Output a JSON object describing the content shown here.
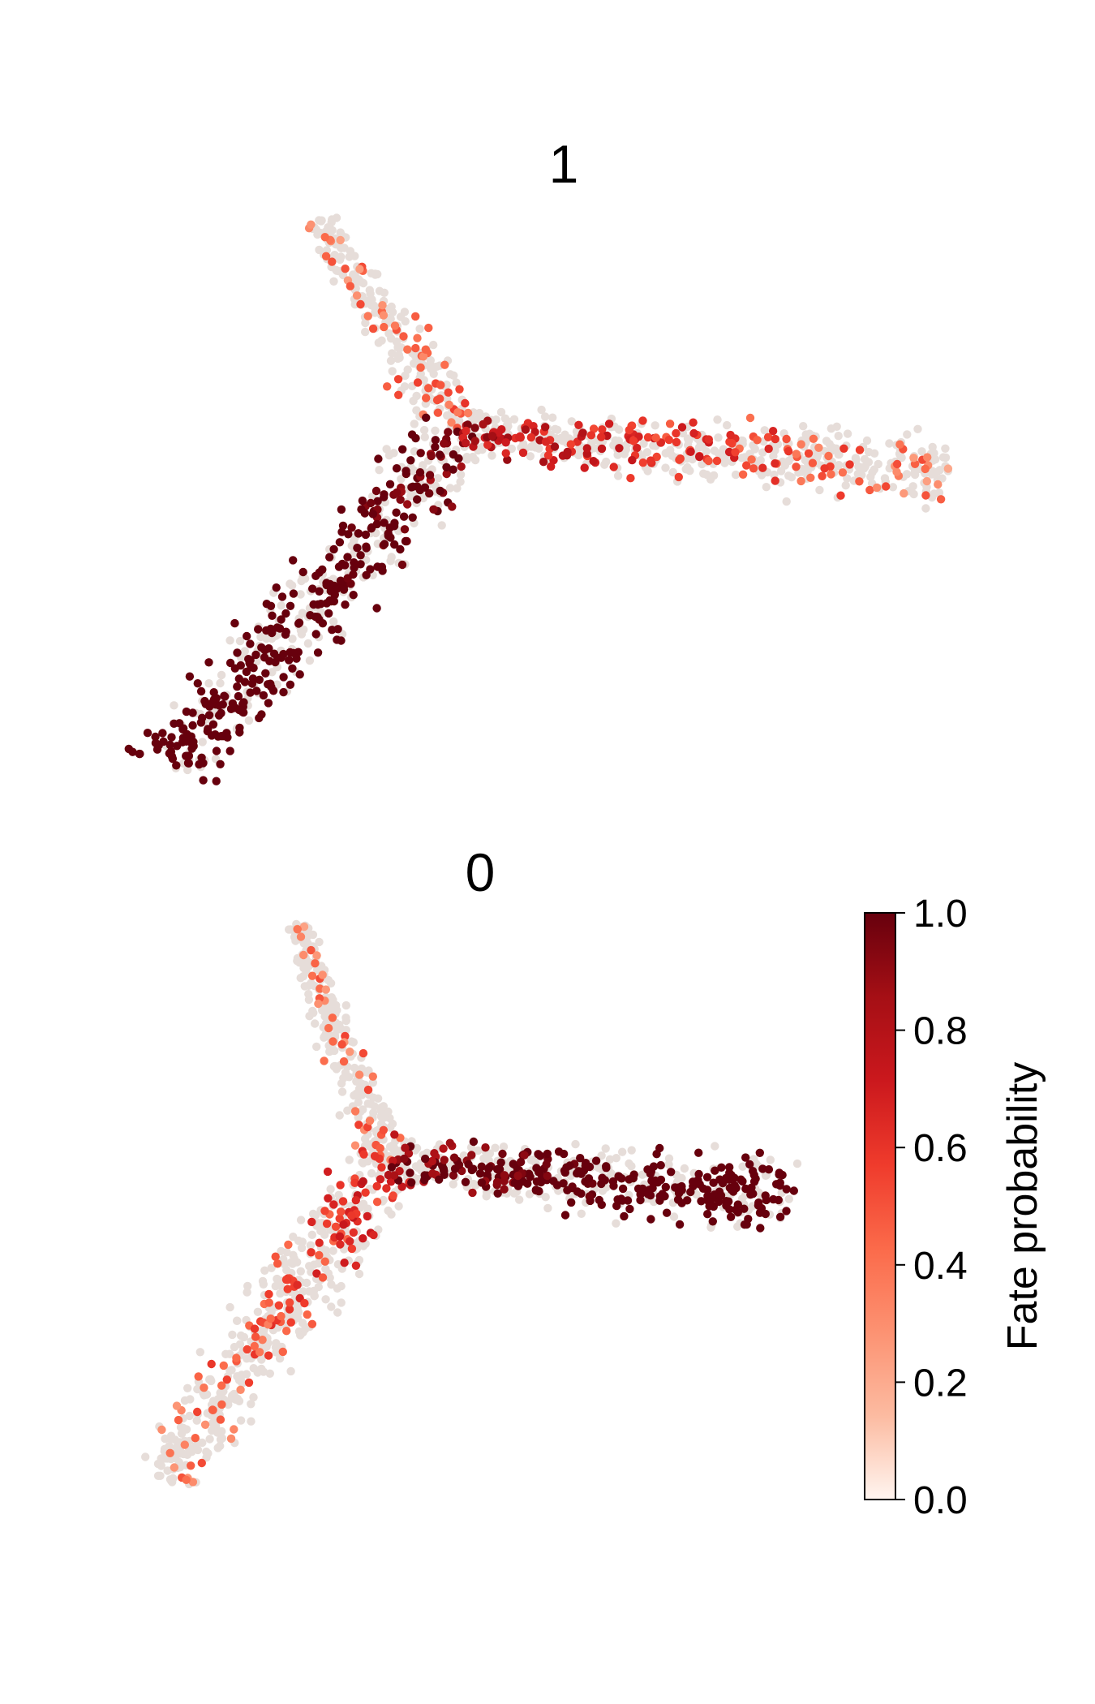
{
  "chart_data": [
    {
      "type": "scatter",
      "title": "1",
      "background_color": "#e6ddd9",
      "branches": [
        {
          "name": "stem",
          "from": [
            0.2,
            1.0
          ],
          "to": [
            0.38,
            0.62
          ],
          "value_start": 0.02,
          "value_end": 0.12
        },
        {
          "name": "left-branch",
          "from": [
            0.38,
            0.62
          ],
          "to": [
            0.02,
            0.02
          ],
          "value_start": 0.6,
          "value_end": 1.0
        },
        {
          "name": "right-branch",
          "from": [
            0.38,
            0.62
          ],
          "to": [
            0.98,
            0.55
          ],
          "value_start": 0.45,
          "value_end": 0.0
        }
      ]
    },
    {
      "type": "scatter",
      "title": "0",
      "background_color": "#e6ddd9",
      "branches": [
        {
          "name": "stem",
          "from": [
            0.22,
            1.0
          ],
          "to": [
            0.36,
            0.58
          ],
          "value_start": 0.02,
          "value_end": 0.1
        },
        {
          "name": "left-branch",
          "from": [
            0.36,
            0.58
          ],
          "to": [
            0.02,
            0.02
          ],
          "value_start": 0.3,
          "value_end": 0.0
        },
        {
          "name": "right-branch",
          "from": [
            0.36,
            0.58
          ],
          "to": [
            0.98,
            0.52
          ],
          "value_start": 0.55,
          "value_end": 1.0
        }
      ]
    }
  ],
  "colorbar": {
    "label": "Fate probability",
    "min": 0.0,
    "max": 1.0,
    "ticks": [
      "0.0",
      "0.2",
      "0.4",
      "0.6",
      "0.8",
      "1.0"
    ],
    "colormap": [
      "#fff5f0",
      "#fcbba1",
      "#fc9272",
      "#fb6a4a",
      "#ef3b2c",
      "#cb181d",
      "#a50f15",
      "#67000d"
    ]
  }
}
